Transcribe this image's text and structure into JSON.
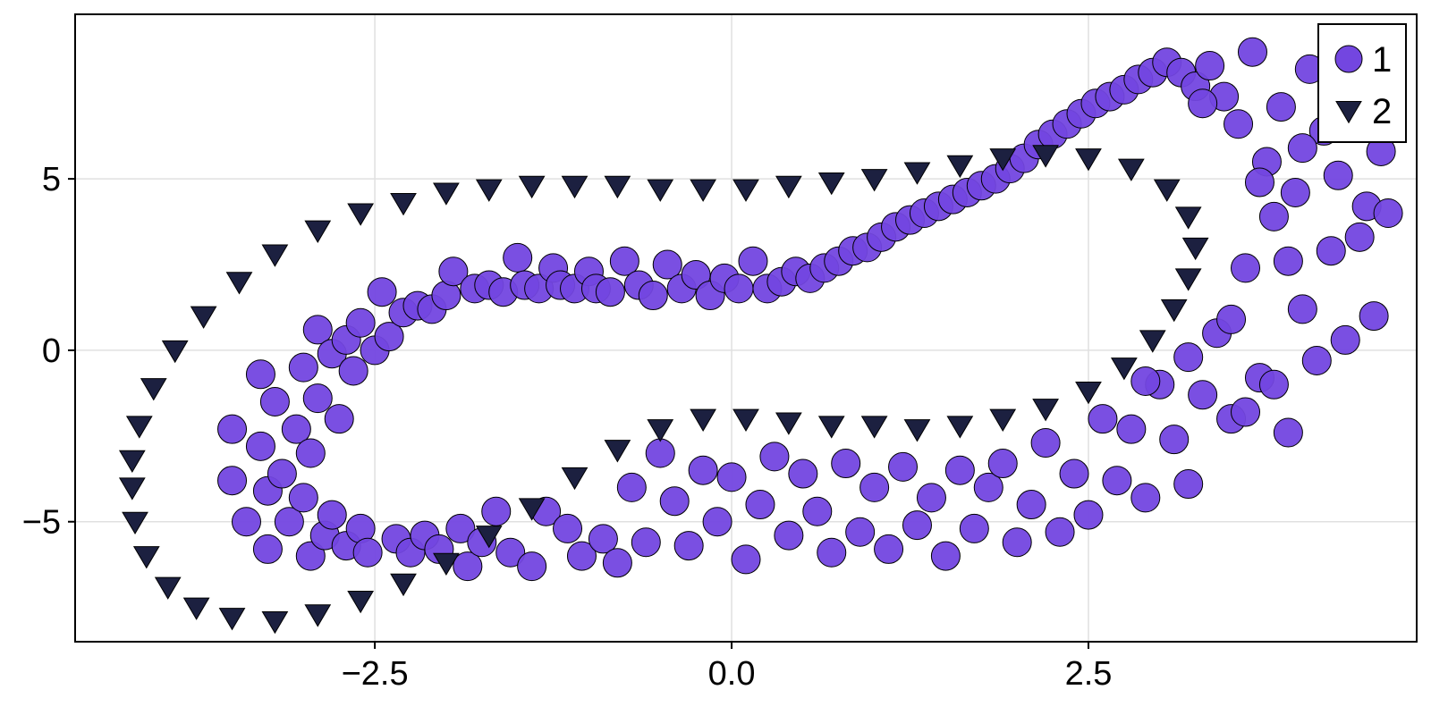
{
  "chart_data": {
    "type": "scatter",
    "title": "",
    "xlabel": "",
    "ylabel": "",
    "xlim": [
      -4.6,
      4.8
    ],
    "ylim": [
      -8.5,
      9.8
    ],
    "xticks": [
      -2.5,
      0.0,
      2.5
    ],
    "xtick_labels": [
      "−2.5",
      "0.0",
      "2.5"
    ],
    "yticks": [
      -5,
      0,
      5
    ],
    "ytick_labels": [
      "−5",
      "0",
      "5"
    ],
    "grid": true,
    "legend": {
      "position": "top-right",
      "entries": [
        "1",
        "2"
      ]
    },
    "series": [
      {
        "name": "1",
        "marker": "circle",
        "color": "#7346e0",
        "points": [
          [
            -3.5,
            -2.3
          ],
          [
            -3.5,
            -3.8
          ],
          [
            -3.4,
            -5.0
          ],
          [
            -3.3,
            -0.7
          ],
          [
            -3.3,
            -2.8
          ],
          [
            -3.25,
            -4.1
          ],
          [
            -3.25,
            -5.8
          ],
          [
            -3.2,
            -1.5
          ],
          [
            -3.15,
            -3.6
          ],
          [
            -3.1,
            -5.0
          ],
          [
            -3.05,
            -2.3
          ],
          [
            -3.0,
            -4.3
          ],
          [
            -3.0,
            -0.5
          ],
          [
            -2.95,
            -3.0
          ],
          [
            -2.95,
            -6.0
          ],
          [
            -2.9,
            0.6
          ],
          [
            -2.9,
            -1.4
          ],
          [
            -2.85,
            -5.4
          ],
          [
            -2.8,
            -0.1
          ],
          [
            -2.8,
            -4.8
          ],
          [
            -2.75,
            -2.0
          ],
          [
            -2.7,
            -5.7
          ],
          [
            -2.7,
            0.3
          ],
          [
            -2.65,
            -0.6
          ],
          [
            -2.6,
            -5.2
          ],
          [
            -2.6,
            0.8
          ],
          [
            -2.55,
            -5.9
          ],
          [
            -2.5,
            0.0
          ],
          [
            -2.45,
            1.7
          ],
          [
            -2.4,
            0.4
          ],
          [
            -2.35,
            -5.5
          ],
          [
            -2.3,
            1.1
          ],
          [
            -2.25,
            -5.9
          ],
          [
            -2.2,
            1.3
          ],
          [
            -2.15,
            -5.4
          ],
          [
            -2.1,
            1.2
          ],
          [
            -2.05,
            -5.8
          ],
          [
            -2.0,
            1.6
          ],
          [
            -1.95,
            2.3
          ],
          [
            -1.9,
            -5.2
          ],
          [
            -1.85,
            -6.3
          ],
          [
            -1.8,
            1.8
          ],
          [
            -1.75,
            -5.6
          ],
          [
            -1.7,
            1.9
          ],
          [
            -1.65,
            -4.7
          ],
          [
            -1.6,
            1.7
          ],
          [
            -1.55,
            -5.9
          ],
          [
            -1.5,
            2.7
          ],
          [
            -1.45,
            1.9
          ],
          [
            -1.4,
            -6.3
          ],
          [
            -1.35,
            1.8
          ],
          [
            -1.3,
            -4.7
          ],
          [
            -1.25,
            2.4
          ],
          [
            -1.2,
            1.9
          ],
          [
            -1.15,
            -5.2
          ],
          [
            -1.1,
            1.8
          ],
          [
            -1.05,
            -6.0
          ],
          [
            -1.0,
            2.3
          ],
          [
            -0.95,
            1.8
          ],
          [
            -0.9,
            -5.5
          ],
          [
            -0.85,
            1.7
          ],
          [
            -0.8,
            -6.2
          ],
          [
            -0.75,
            2.6
          ],
          [
            -0.7,
            -4.0
          ],
          [
            -0.65,
            1.9
          ],
          [
            -0.6,
            -5.6
          ],
          [
            -0.55,
            1.6
          ],
          [
            -0.5,
            -3.0
          ],
          [
            -0.45,
            2.5
          ],
          [
            -0.4,
            -4.4
          ],
          [
            -0.35,
            1.8
          ],
          [
            -0.3,
            -5.7
          ],
          [
            -0.25,
            2.2
          ],
          [
            -0.2,
            -3.5
          ],
          [
            -0.15,
            1.6
          ],
          [
            -0.1,
            -5.0
          ],
          [
            -0.05,
            2.1
          ],
          [
            0.0,
            -3.7
          ],
          [
            0.05,
            1.8
          ],
          [
            0.1,
            -6.1
          ],
          [
            0.15,
            2.6
          ],
          [
            0.2,
            -4.5
          ],
          [
            0.25,
            1.8
          ],
          [
            0.3,
            -3.1
          ],
          [
            0.35,
            2.0
          ],
          [
            0.4,
            -5.4
          ],
          [
            0.45,
            2.3
          ],
          [
            0.5,
            -3.6
          ],
          [
            0.55,
            2.1
          ],
          [
            0.6,
            -4.7
          ],
          [
            0.65,
            2.4
          ],
          [
            0.7,
            -5.9
          ],
          [
            0.75,
            2.6
          ],
          [
            0.8,
            -3.3
          ],
          [
            0.85,
            2.9
          ],
          [
            0.9,
            -5.3
          ],
          [
            0.95,
            3.0
          ],
          [
            1.0,
            -4.0
          ],
          [
            1.05,
            3.3
          ],
          [
            1.1,
            -5.8
          ],
          [
            1.15,
            3.6
          ],
          [
            1.2,
            -3.4
          ],
          [
            1.25,
            3.8
          ],
          [
            1.3,
            -5.1
          ],
          [
            1.35,
            4.0
          ],
          [
            1.4,
            -4.3
          ],
          [
            1.45,
            4.2
          ],
          [
            1.5,
            -6.0
          ],
          [
            1.55,
            4.4
          ],
          [
            1.6,
            -3.5
          ],
          [
            1.65,
            4.6
          ],
          [
            1.7,
            -5.2
          ],
          [
            1.75,
            4.8
          ],
          [
            1.8,
            -4.0
          ],
          [
            1.85,
            5.0
          ],
          [
            1.9,
            -3.3
          ],
          [
            1.95,
            5.3
          ],
          [
            2.0,
            -5.6
          ],
          [
            2.05,
            5.6
          ],
          [
            2.1,
            -4.5
          ],
          [
            2.15,
            6.0
          ],
          [
            2.2,
            -2.7
          ],
          [
            2.25,
            6.3
          ],
          [
            2.3,
            -5.3
          ],
          [
            2.35,
            6.6
          ],
          [
            2.4,
            -3.6
          ],
          [
            2.45,
            6.9
          ],
          [
            2.5,
            -4.8
          ],
          [
            2.55,
            7.2
          ],
          [
            2.6,
            -2.0
          ],
          [
            2.65,
            7.4
          ],
          [
            2.7,
            -3.8
          ],
          [
            2.75,
            7.6
          ],
          [
            2.8,
            -2.3
          ],
          [
            2.85,
            7.9
          ],
          [
            2.9,
            -4.3
          ],
          [
            2.95,
            8.1
          ],
          [
            3.0,
            -1.0
          ],
          [
            3.05,
            8.4
          ],
          [
            3.1,
            -2.6
          ],
          [
            3.15,
            8.1
          ],
          [
            3.2,
            -3.9
          ],
          [
            3.25,
            7.7
          ],
          [
            3.3,
            -1.3
          ],
          [
            3.35,
            8.3
          ],
          [
            3.4,
            0.5
          ],
          [
            3.45,
            7.4
          ],
          [
            3.5,
            -2.0
          ],
          [
            3.55,
            6.6
          ],
          [
            3.6,
            2.4
          ],
          [
            3.65,
            8.7
          ],
          [
            3.7,
            -0.8
          ],
          [
            3.75,
            5.5
          ],
          [
            3.8,
            3.9
          ],
          [
            3.85,
            7.1
          ],
          [
            3.9,
            -2.4
          ],
          [
            3.95,
            4.6
          ],
          [
            4.0,
            1.2
          ],
          [
            4.05,
            8.2
          ],
          [
            4.1,
            -0.3
          ],
          [
            4.15,
            6.4
          ],
          [
            4.2,
            2.9
          ],
          [
            4.25,
            5.1
          ],
          [
            4.3,
            0.3
          ],
          [
            4.35,
            7.6
          ],
          [
            4.4,
            3.3
          ],
          [
            4.45,
            4.2
          ],
          [
            4.5,
            1.0
          ],
          [
            4.55,
            5.8
          ],
          [
            4.6,
            4.0
          ],
          [
            3.6,
            -1.8
          ],
          [
            3.5,
            0.9
          ],
          [
            3.9,
            2.6
          ],
          [
            4.0,
            5.9
          ],
          [
            3.3,
            7.2
          ],
          [
            3.7,
            4.9
          ],
          [
            4.3,
            6.8
          ],
          [
            3.8,
            -1.0
          ],
          [
            2.9,
            -0.9
          ],
          [
            3.2,
            -0.2
          ]
        ]
      },
      {
        "name": "2",
        "marker": "triangle-down",
        "color": "#1c2040",
        "points": [
          [
            -4.2,
            -4.0
          ],
          [
            -4.18,
            -5.0
          ],
          [
            -4.1,
            -6.0
          ],
          [
            -3.95,
            -6.9
          ],
          [
            -3.75,
            -7.5
          ],
          [
            -3.5,
            -7.8
          ],
          [
            -3.2,
            -7.9
          ],
          [
            -2.9,
            -7.7
          ],
          [
            -2.6,
            -7.3
          ],
          [
            -2.3,
            -6.8
          ],
          [
            -2.0,
            -6.2
          ],
          [
            -1.7,
            -5.4
          ],
          [
            -1.4,
            -4.6
          ],
          [
            -1.1,
            -3.7
          ],
          [
            -0.8,
            -2.9
          ],
          [
            -0.5,
            -2.3
          ],
          [
            -0.2,
            -2.0
          ],
          [
            0.1,
            -2.0
          ],
          [
            0.4,
            -2.1
          ],
          [
            0.7,
            -2.2
          ],
          [
            1.0,
            -2.2
          ],
          [
            1.3,
            -2.3
          ],
          [
            1.6,
            -2.2
          ],
          [
            1.9,
            -2.0
          ],
          [
            2.2,
            -1.7
          ],
          [
            2.5,
            -1.2
          ],
          [
            2.75,
            -0.5
          ],
          [
            2.95,
            0.3
          ],
          [
            3.1,
            1.2
          ],
          [
            3.2,
            2.1
          ],
          [
            3.25,
            3.0
          ],
          [
            3.2,
            3.9
          ],
          [
            3.05,
            4.7
          ],
          [
            2.8,
            5.3
          ],
          [
            2.5,
            5.6
          ],
          [
            2.2,
            5.7
          ],
          [
            1.9,
            5.6
          ],
          [
            1.6,
            5.4
          ],
          [
            1.3,
            5.2
          ],
          [
            1.0,
            5.0
          ],
          [
            0.7,
            4.9
          ],
          [
            0.4,
            4.8
          ],
          [
            0.1,
            4.7
          ],
          [
            -0.2,
            4.7
          ],
          [
            -0.5,
            4.7
          ],
          [
            -0.8,
            4.8
          ],
          [
            -1.1,
            4.8
          ],
          [
            -1.4,
            4.8
          ],
          [
            -1.7,
            4.7
          ],
          [
            -2.0,
            4.6
          ],
          [
            -2.3,
            4.3
          ],
          [
            -2.6,
            4.0
          ],
          [
            -2.9,
            3.5
          ],
          [
            -3.2,
            2.8
          ],
          [
            -3.45,
            2.0
          ],
          [
            -3.7,
            1.0
          ],
          [
            -3.9,
            0.0
          ],
          [
            -4.05,
            -1.1
          ],
          [
            -4.15,
            -2.2
          ],
          [
            -4.2,
            -3.2
          ]
        ]
      }
    ]
  }
}
